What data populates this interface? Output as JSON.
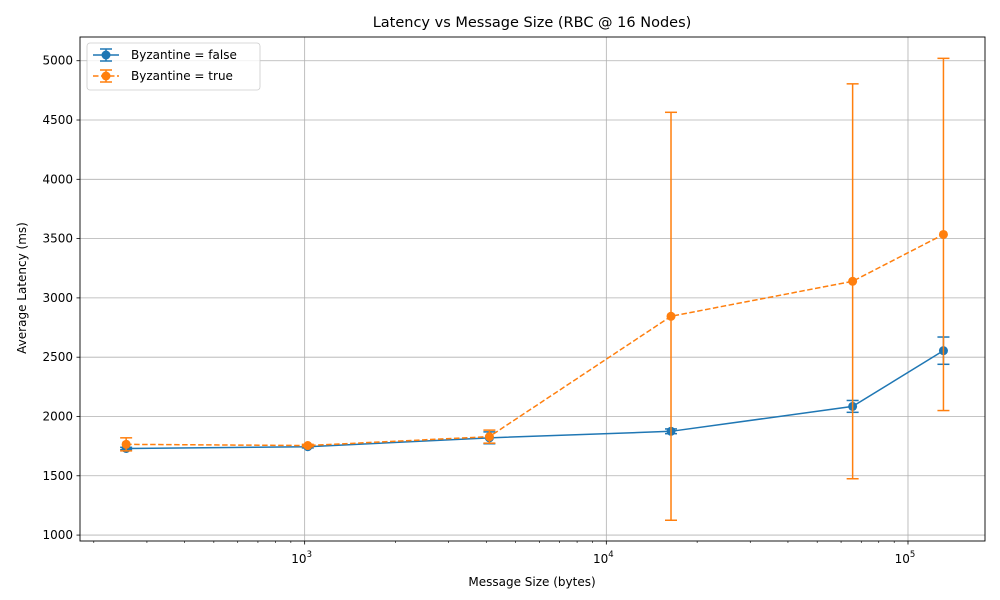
{
  "chart_data": {
    "type": "line",
    "title": "Latency vs Message Size (RBC @ 16 Nodes)",
    "xlabel": "Message Size (bytes)",
    "ylabel": "Average Latency (ms)",
    "xscale": "log",
    "xlim": [
      180,
      180000
    ],
    "ylim": [
      950,
      5200
    ],
    "grid": true,
    "legend_position": "top-left",
    "x_ticks": [
      {
        "value": 1000,
        "base": "10",
        "exp": "3"
      },
      {
        "value": 10000,
        "base": "10",
        "exp": "4"
      },
      {
        "value": 100000,
        "base": "10",
        "exp": "5"
      }
    ],
    "y_ticks": [
      1000,
      1500,
      2000,
      2500,
      3000,
      3500,
      4000,
      4500,
      5000
    ],
    "series": [
      {
        "name": "Byzantine = false",
        "color": "#1f77b4",
        "linestyle": "solid",
        "x": [
          256,
          1024,
          4096,
          16384,
          65536,
          131072
        ],
        "y": [
          1730,
          1745,
          1820,
          1875,
          2085,
          2555
        ],
        "yerr": [
          10,
          10,
          50,
          20,
          50,
          115
        ]
      },
      {
        "name": "Byzantine = true",
        "color": "#ff7f0e",
        "linestyle": "dashed",
        "x": [
          256,
          1024,
          4096,
          16384,
          65536,
          131072
        ],
        "y": [
          1765,
          1755,
          1830,
          2845,
          3140,
          3535
        ],
        "yerr": [
          55,
          10,
          55,
          1720,
          1665,
          1485
        ]
      }
    ]
  }
}
